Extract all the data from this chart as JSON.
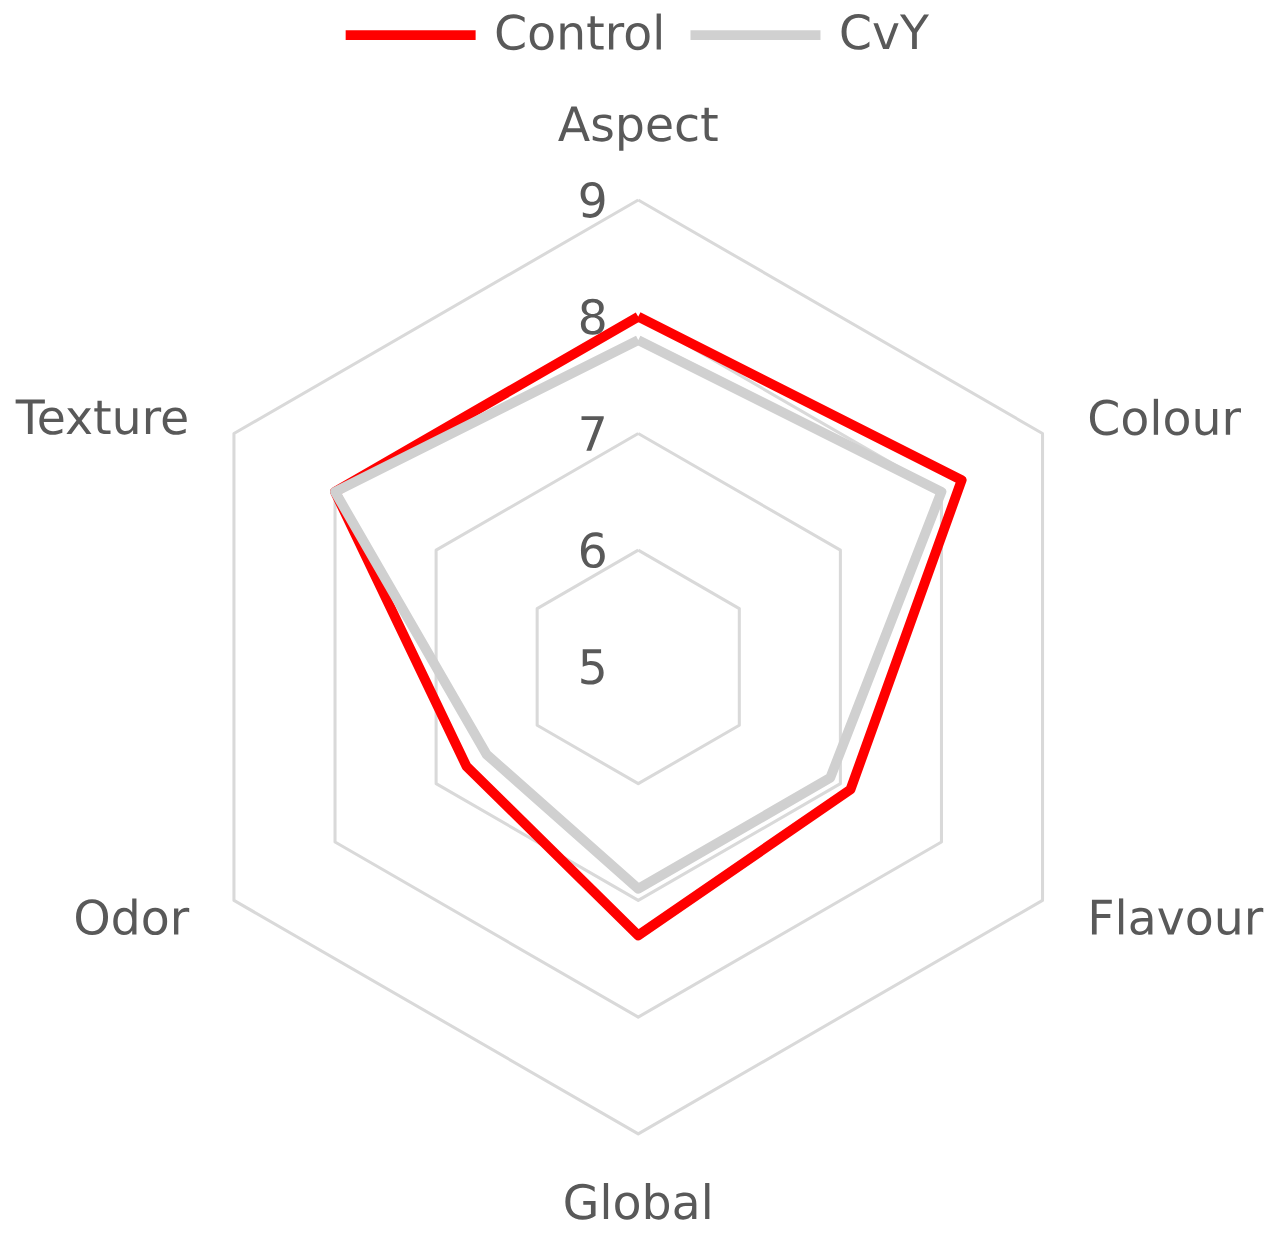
{
  "chart_data": {
    "type": "radar",
    "categories": [
      "Aspect",
      "Colour",
      "Flavour",
      "Global",
      "Odor",
      "Texture"
    ],
    "series": [
      {
        "name": "Control",
        "color": "#ff0000",
        "values": [
          8.0,
          8.2,
          7.1,
          7.3,
          6.7,
          8.0
        ]
      },
      {
        "name": "CvY",
        "color": "#d0d0d0",
        "values": [
          7.8,
          8.0,
          6.9,
          6.9,
          6.5,
          8.0
        ]
      }
    ],
    "ylim": [
      5,
      9
    ],
    "yticks": [
      5,
      6,
      7,
      8,
      9
    ],
    "grid": true,
    "legend": "top"
  }
}
